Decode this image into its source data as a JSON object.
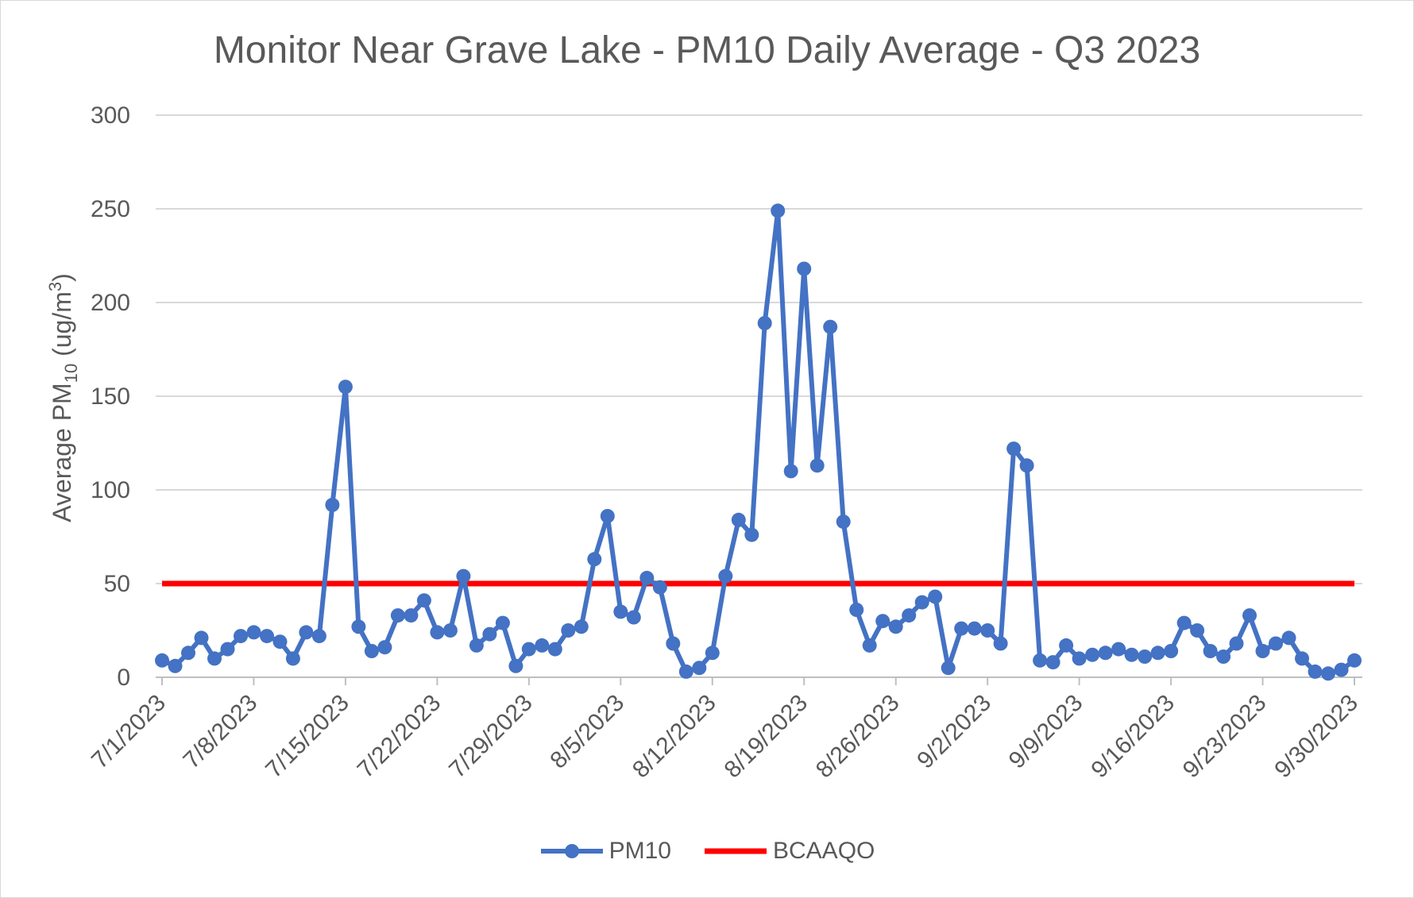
{
  "chart_data": {
    "type": "line",
    "title": "Monitor Near Grave Lake - PM10 Daily Average - Q3 2023",
    "ylabel": "Average PM10 (ug/m3)",
    "ylabel_parts": {
      "before": "Average PM",
      "sub": "10",
      "middle": " (ug/m",
      "sup": "3",
      "after": ")"
    },
    "ylim": [
      0,
      300
    ],
    "yticks": [
      0,
      50,
      100,
      150,
      200,
      250,
      300
    ],
    "x_start": "2023-07-01",
    "x_end": "2023-09-30",
    "xtick_labels": [
      "7/1/2023",
      "7/8/2023",
      "7/15/2023",
      "7/22/2023",
      "7/29/2023",
      "8/5/2023",
      "8/12/2023",
      "8/19/2023",
      "8/26/2023",
      "9/2/2023",
      "9/9/2023",
      "9/16/2023",
      "9/23/2023",
      "9/30/2023"
    ],
    "grid": true,
    "legend_position": "bottom",
    "series": [
      {
        "name": "PM10",
        "color": "#4472c4",
        "marker": "circle",
        "dates": [
          "2023-07-01",
          "2023-07-02",
          "2023-07-03",
          "2023-07-04",
          "2023-07-05",
          "2023-07-06",
          "2023-07-07",
          "2023-07-08",
          "2023-07-09",
          "2023-07-10",
          "2023-07-11",
          "2023-07-12",
          "2023-07-13",
          "2023-07-14",
          "2023-07-15",
          "2023-07-16",
          "2023-07-17",
          "2023-07-18",
          "2023-07-19",
          "2023-07-20",
          "2023-07-21",
          "2023-07-22",
          "2023-07-23",
          "2023-07-24",
          "2023-07-25",
          "2023-07-26",
          "2023-07-27",
          "2023-07-28",
          "2023-07-29",
          "2023-07-30",
          "2023-07-31",
          "2023-08-01",
          "2023-08-02",
          "2023-08-03",
          "2023-08-04",
          "2023-08-05",
          "2023-08-06",
          "2023-08-07",
          "2023-08-08",
          "2023-08-09",
          "2023-08-10",
          "2023-08-11",
          "2023-08-12",
          "2023-08-13",
          "2023-08-14",
          "2023-08-15",
          "2023-08-16",
          "2023-08-17",
          "2023-08-18",
          "2023-08-19",
          "2023-08-20",
          "2023-08-21",
          "2023-08-22",
          "2023-08-23",
          "2023-08-24",
          "2023-08-25",
          "2023-08-26",
          "2023-08-27",
          "2023-08-28",
          "2023-08-29",
          "2023-08-30",
          "2023-08-31",
          "2023-09-01",
          "2023-09-02",
          "2023-09-03",
          "2023-09-04",
          "2023-09-05",
          "2023-09-06",
          "2023-09-07",
          "2023-09-08",
          "2023-09-09",
          "2023-09-10",
          "2023-09-11",
          "2023-09-12",
          "2023-09-13",
          "2023-09-14",
          "2023-09-15",
          "2023-09-16",
          "2023-09-17",
          "2023-09-18",
          "2023-09-19",
          "2023-09-20",
          "2023-09-21",
          "2023-09-22",
          "2023-09-23",
          "2023-09-24",
          "2023-09-25",
          "2023-09-26",
          "2023-09-27",
          "2023-09-28",
          "2023-09-29",
          "2023-09-30"
        ],
        "values": [
          9,
          6,
          13,
          21,
          10,
          15,
          22,
          24,
          22,
          19,
          10,
          24,
          22,
          92,
          155,
          27,
          14,
          16,
          33,
          33,
          41,
          24,
          25,
          54,
          17,
          23,
          29,
          6,
          15,
          17,
          15,
          25,
          27,
          63,
          86,
          35,
          32,
          53,
          48,
          18,
          3,
          5,
          13,
          54,
          84,
          76,
          189,
          249,
          110,
          218,
          113,
          187,
          83,
          36,
          17,
          30,
          27,
          33,
          40,
          43,
          5,
          26,
          26,
          25,
          18,
          122,
          113,
          9,
          8,
          17,
          10,
          12,
          13,
          15,
          12,
          11,
          13,
          14,
          29,
          25,
          14,
          11,
          18,
          33,
          14,
          18,
          21,
          10,
          3,
          2,
          4,
          9
        ]
      },
      {
        "name": "BCAAQO",
        "color": "#ff0000",
        "marker": "none",
        "value": 50
      }
    ]
  }
}
